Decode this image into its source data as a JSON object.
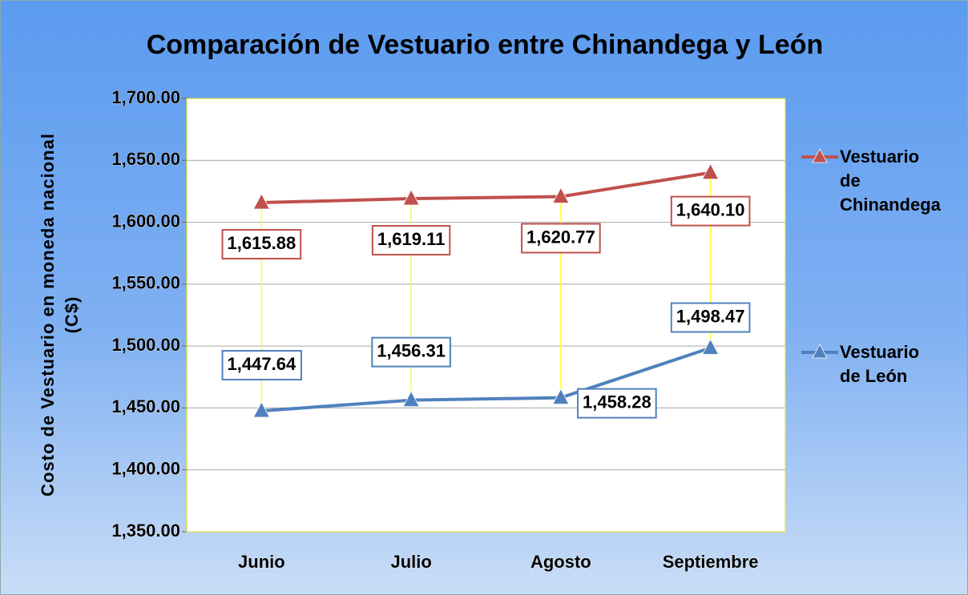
{
  "chart_data": {
    "type": "line",
    "title": "Comparación de Vestuario entre Chinandega y León",
    "y_label": "Costo de Vestuario en moneda nacional (C$)",
    "categories": [
      "Junio",
      "Julio",
      "Agosto",
      "Septiembre"
    ],
    "series": [
      {
        "name": "Vestuario de Chinandega",
        "color": "#c0504d",
        "values": [
          1615.88,
          1619.11,
          1620.77,
          1640.1
        ],
        "value_labels": [
          "1,615.88",
          "1,619.11",
          "1,620.77",
          "1,640.10"
        ]
      },
      {
        "name": "Vestuario de León",
        "color": "#4f81bd",
        "values": [
          1447.64,
          1456.31,
          1458.28,
          1498.47
        ],
        "value_labels": [
          "1,447.64",
          "1,456.31",
          "1,458.28",
          "1,498.47"
        ]
      }
    ],
    "ylim": [
      1350,
      1700
    ],
    "yticks": [
      {
        "value": 1350,
        "label": "1,350.00"
      },
      {
        "value": 1400,
        "label": "1,400.00"
      },
      {
        "value": 1450,
        "label": "1,450.00"
      },
      {
        "value": 1500,
        "label": "1,500.00"
      },
      {
        "value": 1550,
        "label": "1,550.00"
      },
      {
        "value": 1600,
        "label": "1,600.00"
      },
      {
        "value": 1650,
        "label": "1,650.00"
      },
      {
        "value": 1700,
        "label": "1,700.00"
      }
    ],
    "grid": true,
    "legend": "right"
  }
}
